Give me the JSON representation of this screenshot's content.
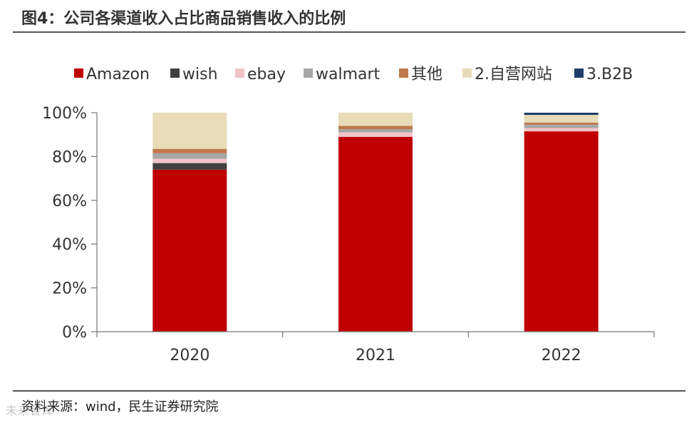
{
  "header": {
    "title": "图4：公司各渠道收入占比商品销售收入的比例"
  },
  "footer": {
    "source": "资料来源：wind，民生证券研究院",
    "watermark": "未来智库"
  },
  "chart_data": {
    "type": "bar",
    "stacked": true,
    "categories": [
      "2020",
      "2021",
      "2022"
    ],
    "ylim": [
      0,
      100
    ],
    "yticks": [
      "0%",
      "20%",
      "40%",
      "60%",
      "80%",
      "100%"
    ],
    "legend_position": "top",
    "grid": false,
    "series": [
      {
        "name": "Amazon",
        "color": "#C00000",
        "values": [
          74,
          89,
          91.5
        ]
      },
      {
        "name": "wish",
        "color": "#404040",
        "values": [
          3,
          0,
          0
        ]
      },
      {
        "name": "ebay",
        "color": "#F2C4C9",
        "values": [
          2,
          2,
          1.5
        ]
      },
      {
        "name": "walmart",
        "color": "#A6A6A6",
        "values": [
          2.5,
          1.5,
          1.5
        ]
      },
      {
        "name": "其他",
        "color": "#C0784A",
        "values": [
          2,
          1.5,
          1
        ]
      },
      {
        "name": "2.自营网站",
        "color": "#E8DBB8",
        "values": [
          16.5,
          6,
          3.5
        ]
      },
      {
        "name": "3.B2B",
        "color": "#1F3D6B",
        "values": [
          0,
          0,
          1
        ]
      }
    ]
  }
}
